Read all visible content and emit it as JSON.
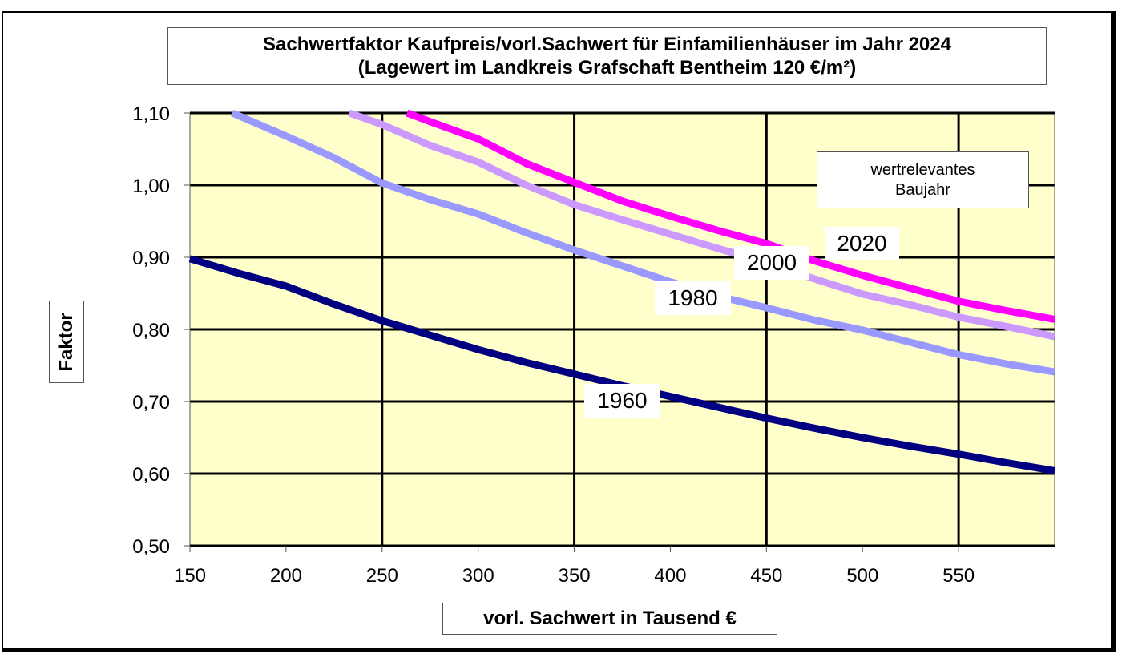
{
  "title": {
    "line1": "Sachwertfaktor  Kaufpreis/vorl.Sachwert für Einfamilienhäuser  im Jahr 2024",
    "line2": "(Lagewert im Landkreis Grafschaft Bentheim 120  €/m²)"
  },
  "axes": {
    "ylabel": "Faktor",
    "xlabel": "vorl. Sachwert in Tausend €",
    "yticks": [
      "1,10",
      "1,00",
      "0,90",
      "0,80",
      "0,70",
      "0,60",
      "0,50"
    ],
    "xticks": [
      "150",
      "200",
      "250",
      "300",
      "350",
      "400",
      "450",
      "500",
      "550"
    ]
  },
  "legend": {
    "line1": "wertrelevantes",
    "line2": "Baujahr"
  },
  "series_labels": {
    "s1960": "1960",
    "s1980": "1980",
    "s2000": "2000",
    "s2020": "2020"
  },
  "colors": {
    "plot_bg": "#FFFFCC",
    "s1960": "#000080",
    "s1980": "#9999FF",
    "s2000": "#CC99FF",
    "s2020": "#FF00FF",
    "grid": "#000000"
  },
  "chart_data": {
    "type": "line",
    "title": "Sachwertfaktor Kaufpreis/vorl.Sachwert für Einfamilienhäuser im Jahr 2024 (Lagewert im Landkreis Grafschaft Bentheim 120 €/m²)",
    "xlabel": "vorl. Sachwert in Tausend €",
    "ylabel": "Faktor",
    "xlim": [
      150,
      600
    ],
    "ylim": [
      0.5,
      1.1
    ],
    "grid": true,
    "legend_title": "wertrelevantes Baujahr",
    "legend_position": "inline labels",
    "series": [
      {
        "name": "1960",
        "x": [
          150,
          175,
          200,
          225,
          250,
          275,
          300,
          325,
          350,
          375,
          400,
          425,
          450,
          475,
          500,
          525,
          550,
          575,
          600
        ],
        "values": [
          0.898,
          0.878,
          0.86,
          0.835,
          0.812,
          0.792,
          0.772,
          0.754,
          0.738,
          0.722,
          0.707,
          0.692,
          0.677,
          0.663,
          0.65,
          0.638,
          0.627,
          0.615,
          0.604
        ]
      },
      {
        "name": "1980",
        "x": [
          172,
          200,
          225,
          250,
          275,
          300,
          325,
          350,
          375,
          400,
          425,
          450,
          475,
          500,
          525,
          550,
          575,
          600
        ],
        "values": [
          1.1,
          1.068,
          1.038,
          1.003,
          0.98,
          0.96,
          0.934,
          0.91,
          0.888,
          0.866,
          0.846,
          0.83,
          0.813,
          0.799,
          0.782,
          0.765,
          0.752,
          0.741
        ]
      },
      {
        "name": "2000",
        "x": [
          233,
          250,
          275,
          300,
          325,
          350,
          375,
          400,
          425,
          450,
          475,
          500,
          525,
          550,
          575,
          600
        ],
        "values": [
          1.1,
          1.084,
          1.055,
          1.032,
          1.0,
          0.973,
          0.952,
          0.932,
          0.912,
          0.893,
          0.87,
          0.849,
          0.834,
          0.817,
          0.804,
          0.79
        ]
      },
      {
        "name": "2020",
        "x": [
          263,
          275,
          300,
          325,
          350,
          375,
          400,
          425,
          450,
          475,
          500,
          525,
          550,
          575,
          600
        ],
        "values": [
          1.1,
          1.088,
          1.064,
          1.03,
          1.004,
          0.978,
          0.957,
          0.937,
          0.919,
          0.895,
          0.875,
          0.857,
          0.839,
          0.826,
          0.814
        ]
      }
    ]
  }
}
